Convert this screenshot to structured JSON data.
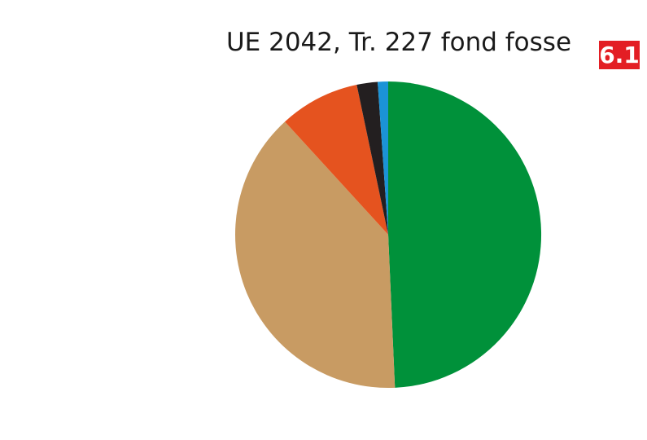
{
  "chart_data": {
    "type": "pie",
    "title": "UE 2042, Tr. 227 fond fosse",
    "badge": "6.1",
    "start_angle_deg": 0,
    "direction": "clockwise",
    "slices": [
      {
        "value": 49.3,
        "color": "#00913a"
      },
      {
        "value": 38.9,
        "color": "#c89b63"
      },
      {
        "value": 8.5,
        "color": "#e5531f"
      },
      {
        "value": 2.2,
        "color": "#231f20"
      },
      {
        "value": 1.1,
        "color": "#1b93d6"
      }
    ],
    "legend": "none"
  }
}
